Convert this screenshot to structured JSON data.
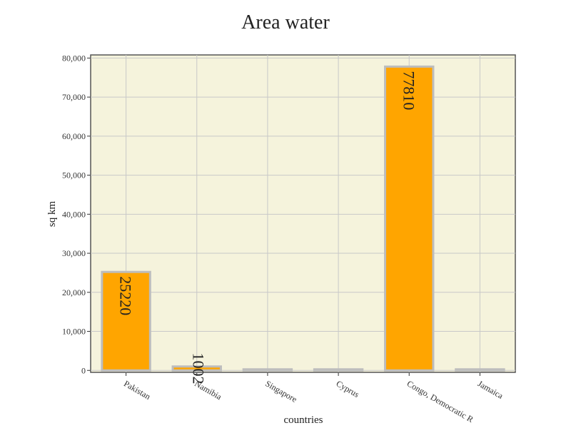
{
  "chart_data": {
    "type": "bar",
    "title": "Area water",
    "xlabel": "countries",
    "ylabel": "sq km",
    "categories": [
      "Pakistan",
      "Namibia",
      "Singapore",
      "Cyprus",
      "Congo, Democratic R",
      "Jamaica"
    ],
    "values": [
      25220,
      1002,
      10,
      10,
      77810,
      160
    ],
    "data_labels": [
      "25220",
      "1002",
      "",
      "",
      "77810",
      ""
    ],
    "yticks": [
      "0",
      "10,000",
      "20,000",
      "30,000",
      "40,000",
      "50,000",
      "60,000",
      "70,000",
      "80,000"
    ],
    "ytick_values": [
      0,
      10000,
      20000,
      30000,
      40000,
      50000,
      60000,
      70000,
      80000
    ],
    "ylim": [
      -500,
      80800
    ],
    "grid": true,
    "colors": {
      "bar": "#ffa500",
      "bar_border": "#bdbdbd",
      "plot_bg": "#f5f3dc",
      "grid": "#c8c8c8"
    }
  }
}
